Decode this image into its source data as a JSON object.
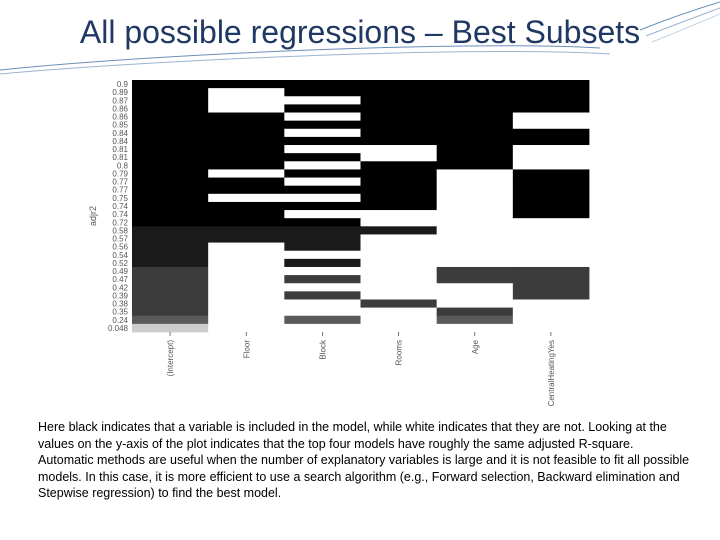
{
  "slide": {
    "title": "All possible regressions – Best Subsets",
    "caption": [
      "Here black indicates that a variable is included in the model, while white indicates that they are not. Looking at the values on the y-axis of the plot indicates that the top four models have roughly the same adjusted R-square.",
      "Automatic methods are useful when the number of explanatory variables is large and it is not feasible to fit all possible models. In this case, it is more efficient to use a search algorithm (e.g., Forward selection, Backward elimination and Stepwise regression) to find the best model."
    ]
  },
  "colors": {
    "title": "#1f3864",
    "swoosh": "#6b8fb8"
  },
  "chart_data": {
    "type": "heatmap",
    "ylabel": "adjr2",
    "variables": [
      "(Intercept)",
      "Floor",
      "Block",
      "Rooms",
      "Age",
      "CentralHeatingYes"
    ],
    "y_tick_labels": [
      "0.9",
      "0.89",
      "0.87",
      "0.86",
      "0.86",
      "0.85",
      "0.84",
      "0.84",
      "0.81",
      "0.81",
      "0.8",
      "0.79",
      "0.77",
      "0.77",
      "0.75",
      "0.74",
      "0.74",
      "0.72",
      "0.58",
      "0.57",
      "0.56",
      "0.54",
      "0.52",
      "0.49",
      "0.47",
      "0.42",
      "0.39",
      "0.38",
      "0.35",
      "0.24",
      "0.048"
    ],
    "row_shades": [
      "#000000",
      "#000000",
      "#000000",
      "#000000",
      "#000000",
      "#000000",
      "#000000",
      "#000000",
      "#000000",
      "#000000",
      "#000000",
      "#000000",
      "#000000",
      "#000000",
      "#000000",
      "#000000",
      "#000000",
      "#000000",
      "#1a1a1a",
      "#1a1a1a",
      "#1a1a1a",
      "#1a1a1a",
      "#1a1a1a",
      "#3c3c3c",
      "#3c3c3c",
      "#3c3c3c",
      "#3c3c3c",
      "#3c3c3c",
      "#3c3c3c",
      "#5a5a5a",
      "#cccccc"
    ],
    "included": [
      [
        1,
        1,
        1,
        1,
        1,
        1
      ],
      [
        1,
        0,
        1,
        1,
        1,
        1
      ],
      [
        1,
        0,
        0,
        1,
        1,
        1
      ],
      [
        1,
        0,
        1,
        1,
        1,
        1
      ],
      [
        1,
        1,
        0,
        1,
        1,
        0
      ],
      [
        1,
        1,
        1,
        1,
        1,
        0
      ],
      [
        1,
        1,
        0,
        1,
        1,
        1
      ],
      [
        1,
        1,
        1,
        1,
        1,
        1
      ],
      [
        1,
        1,
        0,
        0,
        1,
        0
      ],
      [
        1,
        1,
        1,
        0,
        1,
        0
      ],
      [
        1,
        1,
        0,
        1,
        1,
        0
      ],
      [
        1,
        0,
        1,
        1,
        0,
        1
      ],
      [
        1,
        1,
        0,
        1,
        0,
        1
      ],
      [
        1,
        1,
        1,
        1,
        0,
        1
      ],
      [
        1,
        0,
        0,
        1,
        0,
        1
      ],
      [
        1,
        1,
        1,
        1,
        0,
        1
      ],
      [
        1,
        1,
        0,
        0,
        0,
        1
      ],
      [
        1,
        1,
        1,
        0,
        0,
        0
      ],
      [
        1,
        1,
        1,
        1,
        0,
        0
      ],
      [
        1,
        1,
        1,
        0,
        0,
        0
      ],
      [
        1,
        0,
        1,
        0,
        0,
        0
      ],
      [
        1,
        0,
        0,
        0,
        0,
        0
      ],
      [
        1,
        0,
        1,
        0,
        0,
        0
      ],
      [
        1,
        0,
        0,
        0,
        1,
        1
      ],
      [
        1,
        0,
        1,
        0,
        1,
        1
      ],
      [
        1,
        0,
        0,
        0,
        0,
        1
      ],
      [
        1,
        0,
        1,
        0,
        0,
        1
      ],
      [
        1,
        0,
        0,
        1,
        0,
        0
      ],
      [
        1,
        0,
        0,
        0,
        1,
        0
      ],
      [
        1,
        0,
        1,
        0,
        1,
        0
      ],
      [
        1,
        0,
        0,
        0,
        0,
        0
      ]
    ],
    "grid": false,
    "legend": "none"
  }
}
